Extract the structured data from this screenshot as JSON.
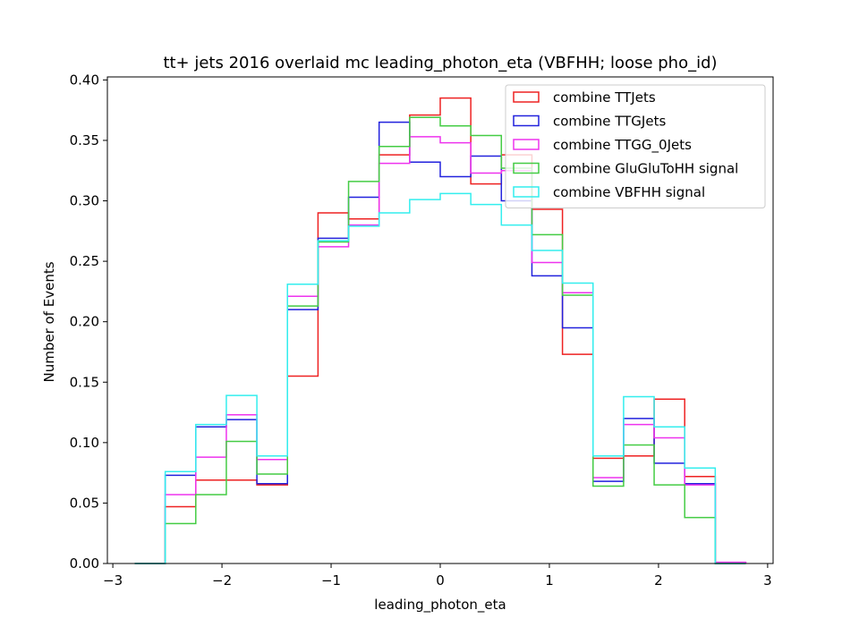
{
  "chart_data": {
    "type": "histogram",
    "title": "tt+ jets 2016 overlaid mc leading_photon_eta (VBFHH; loose pho_id)",
    "xlabel": "leading_photon_eta",
    "ylabel": "Number of Events",
    "xlim": [
      -3.05,
      3.05
    ],
    "ylim": [
      0,
      0.4025
    ],
    "xticks": [
      -3,
      -2,
      -1,
      0,
      1,
      2,
      3
    ],
    "xtick_labels": [
      "−3",
      "−2",
      "−1",
      "0",
      "1",
      "2",
      "3"
    ],
    "yticks": [
      0.0,
      0.05,
      0.1,
      0.15,
      0.2,
      0.25,
      0.3,
      0.35,
      0.4
    ],
    "ytick_labels": [
      "0.00",
      "0.05",
      "0.10",
      "0.15",
      "0.20",
      "0.25",
      "0.30",
      "0.35",
      "0.40"
    ],
    "legend_position": "top-right",
    "grid": false,
    "bin_edges": [
      -2.8,
      -2.52,
      -2.24,
      -1.96,
      -1.68,
      -1.4,
      -1.12,
      -0.84,
      -0.56,
      -0.28,
      0.0,
      0.28,
      0.56,
      0.84,
      1.12,
      1.4,
      1.68,
      1.96,
      2.24,
      2.52,
      2.8
    ],
    "series": [
      {
        "name": "combine TTJets",
        "color": "#ee2222",
        "values": [
          0.0,
          0.047,
          0.069,
          0.069,
          0.065,
          0.155,
          0.29,
          0.285,
          0.338,
          0.371,
          0.385,
          0.314,
          0.338,
          0.293,
          0.173,
          0.087,
          0.089,
          0.136,
          0.072,
          0.0
        ]
      },
      {
        "name": "combine TTGJets",
        "color": "#2222dd",
        "values": [
          0.0,
          0.073,
          0.113,
          0.119,
          0.066,
          0.21,
          0.269,
          0.303,
          0.365,
          0.332,
          0.32,
          0.337,
          0.3,
          0.238,
          0.195,
          0.068,
          0.12,
          0.083,
          0.066,
          0.0
        ]
      },
      {
        "name": "combine TTGG_0Jets",
        "color": "#ee33ee",
        "values": [
          0.0,
          0.057,
          0.088,
          0.123,
          0.086,
          0.221,
          0.262,
          0.28,
          0.331,
          0.353,
          0.348,
          0.323,
          0.325,
          0.249,
          0.224,
          0.071,
          0.115,
          0.104,
          0.065,
          0.001
        ]
      },
      {
        "name": "combine GluGluToHH signal",
        "color": "#44cc44",
        "values": [
          0.0,
          0.033,
          0.057,
          0.101,
          0.074,
          0.213,
          0.266,
          0.316,
          0.345,
          0.369,
          0.362,
          0.354,
          0.327,
          0.272,
          0.222,
          0.064,
          0.098,
          0.065,
          0.038,
          0.0
        ]
      },
      {
        "name": "combine VBFHH signal",
        "color": "#33eeee",
        "values": [
          0.0,
          0.076,
          0.115,
          0.139,
          0.089,
          0.231,
          0.267,
          0.279,
          0.29,
          0.301,
          0.306,
          0.297,
          0.28,
          0.259,
          0.232,
          0.089,
          0.138,
          0.113,
          0.079,
          0.0
        ]
      }
    ]
  }
}
